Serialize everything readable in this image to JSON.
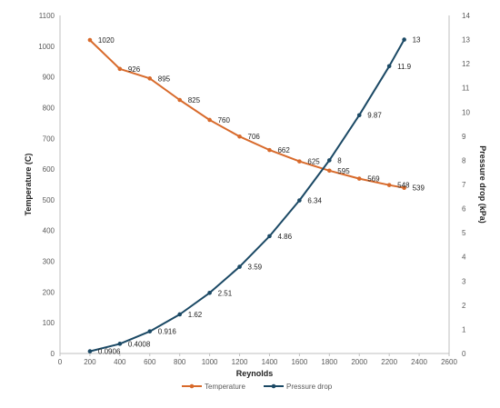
{
  "chart_data": {
    "type": "line",
    "title": "",
    "xlabel": "Reynolds",
    "ylabel_left": "Temperature (C)",
    "ylabel_right": "Pressure drop (kPa)",
    "xlim": [
      0,
      2600
    ],
    "x_ticks": [
      "0",
      "200",
      "400",
      "600",
      "800",
      "1000",
      "1200",
      "1400",
      "1600",
      "1800",
      "2000",
      "2200",
      "2400",
      "2600"
    ],
    "ylim_left": [
      0,
      1100
    ],
    "y_ticks_left": [
      "0",
      "100",
      "200",
      "300",
      "400",
      "500",
      "600",
      "700",
      "800",
      "900",
      "1000",
      "1100"
    ],
    "ylim_right": [
      0,
      14
    ],
    "y_ticks_right": [
      "0",
      "1",
      "2",
      "3",
      "4",
      "5",
      "6",
      "7",
      "8",
      "9",
      "10",
      "11",
      "12",
      "13",
      "14"
    ],
    "grid": false,
    "legend_position": "bottom",
    "series": [
      {
        "name": "Temperature",
        "axis": "left",
        "color": "#D86A2B",
        "x": [
          200,
          400,
          600,
          800,
          1000,
          1200,
          1400,
          1600,
          1800,
          2000,
          2200,
          2300
        ],
        "values": [
          1020,
          926,
          895,
          825,
          760,
          706,
          662,
          625,
          595,
          569,
          548,
          539
        ],
        "labels": [
          "1020",
          "926",
          "895",
          "825",
          "760",
          "706",
          "662",
          "625",
          "595",
          "569",
          "548",
          "539"
        ]
      },
      {
        "name": "Pressure drop",
        "axis": "right",
        "color": "#1B4965",
        "x": [
          200,
          400,
          600,
          800,
          1000,
          1200,
          1400,
          1600,
          1800,
          2000,
          2200,
          2300
        ],
        "values": [
          0.0906,
          0.4008,
          0.916,
          1.62,
          2.51,
          3.59,
          4.86,
          6.34,
          8,
          9.87,
          11.9,
          13
        ],
        "labels": [
          "0.0906",
          "0.4008",
          "0.916",
          "1.62",
          "2.51",
          "3.59",
          "4.86",
          "6.34",
          "8",
          "9.87",
          "11.9",
          "13"
        ]
      }
    ]
  }
}
